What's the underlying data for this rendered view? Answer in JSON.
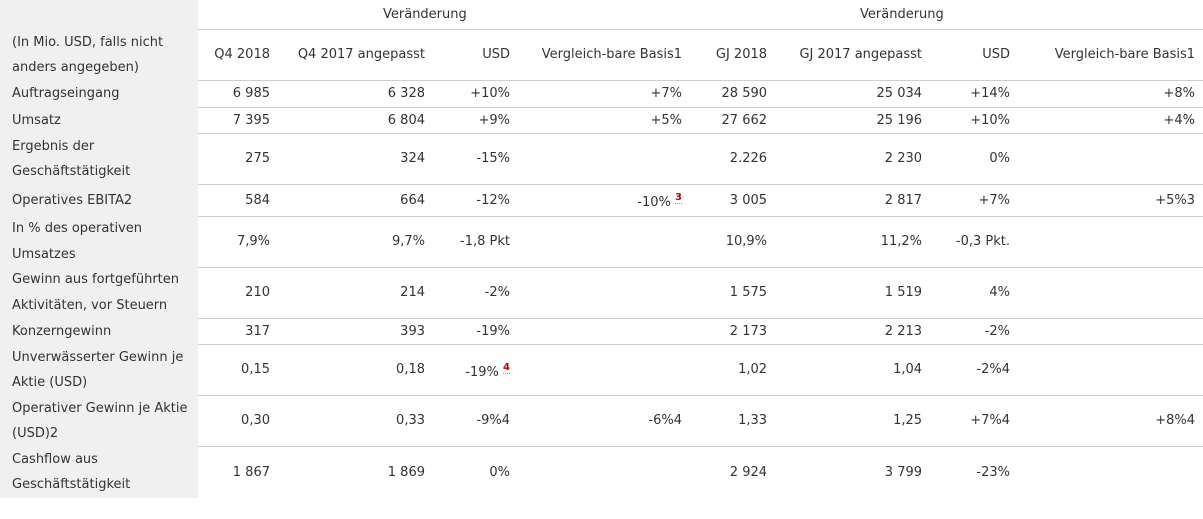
{
  "header": {
    "change_q": "Veränderung",
    "change_fy": "Veränderung",
    "row_label": "(In Mio. USD, falls nicht anders angegeben)",
    "columns": [
      "Q4 2018",
      "Q4 2017 angepasst",
      "USD",
      "Vergleich-bare Basis1",
      "GJ 2018",
      "GJ 2017 angepasst",
      "USD",
      "Vergleich-bare Basis1"
    ]
  },
  "rows": [
    {
      "label": "Auftragseingang",
      "c": [
        "6 985",
        "6 328",
        "+10%",
        "+7%",
        "28 590",
        "25 034",
        "+14%",
        "+8%"
      ]
    },
    {
      "label": "Umsatz",
      "c": [
        "7 395",
        "6 804",
        "+9%",
        "+5%",
        "27 662",
        "25 196",
        "+10%",
        "+4%"
      ]
    },
    {
      "label": "Ergebnis der Geschäftstätigkeit",
      "c": [
        "275",
        "324",
        "-15%",
        "",
        "2.226",
        "2 230",
        "0%",
        ""
      ]
    },
    {
      "label": "Operatives EBITA2",
      "c": [
        "584",
        "664",
        "-12%",
        "-10%",
        "3 005",
        "2 817",
        "+7%",
        "+5%3"
      ],
      "fn3": "3"
    },
    {
      "label": "In % des operativen Umsatzes",
      "c": [
        "7,9%",
        "9,7%",
        "-1,8 Pkt",
        "",
        "10,9%",
        "11,2%",
        "-0,3 Pkt.",
        ""
      ]
    },
    {
      "label": "Gewinn aus fortgeführten Aktivitäten, vor Steuern",
      "c": [
        "210",
        "214",
        "-2%",
        "",
        "1 575",
        "1 519",
        "4%",
        ""
      ]
    },
    {
      "label": "Konzerngewinn",
      "c": [
        "317",
        "393",
        "-19%",
        "",
        "2 173",
        "2 213",
        "-2%",
        ""
      ]
    },
    {
      "label": "Unverwässerter Gewinn je Aktie (USD)",
      "c": [
        "0,15",
        "0,18",
        "-19%",
        "",
        "1,02",
        "1,04",
        "-2%4",
        ""
      ],
      "fn2": "4"
    },
    {
      "label": "Operativer Gewinn je Aktie (USD)2",
      "c": [
        "0,30",
        "0,33",
        "-9%4",
        "-6%4",
        "1,33",
        "1,25",
        "+7%4",
        "+8%4"
      ]
    },
    {
      "label": "Cashflow aus Geschäftstätigkeit",
      "c": [
        "1 867",
        "1 869",
        "0%",
        "",
        "2 924",
        "3 799",
        "-23%",
        ""
      ]
    }
  ]
}
